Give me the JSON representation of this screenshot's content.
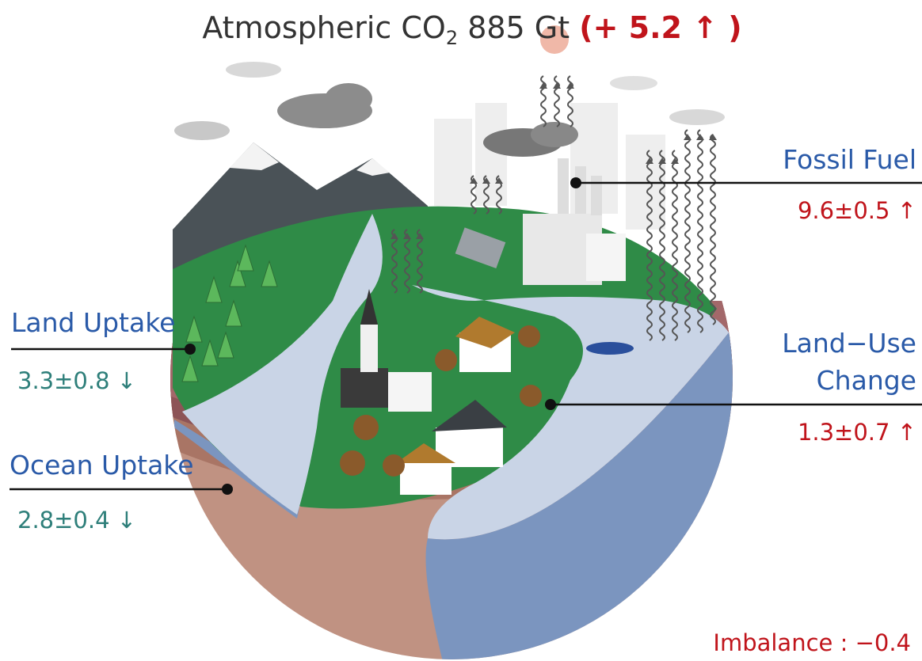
{
  "title": {
    "prefix": "Atmospheric CO",
    "subscript": "2",
    "suffix": " 885 Gt ",
    "change": "(+ 5.2 ↑ )"
  },
  "fossil_fuel": {
    "label": "Fossil Fuel",
    "value": "9.6±0.5 ↑"
  },
  "land_uptake": {
    "label": "Land Uptake",
    "value": "3.3±0.8 ↓"
  },
  "land_use_change": {
    "label": [
      "Land−Use",
      "Change"
    ],
    "value": "1.3±0.7 ↑"
  },
  "ocean_uptake": {
    "label": "Ocean Uptake",
    "value": "2.8±0.4 ↓"
  },
  "imbalance": "Imbalance : −0.4"
}
